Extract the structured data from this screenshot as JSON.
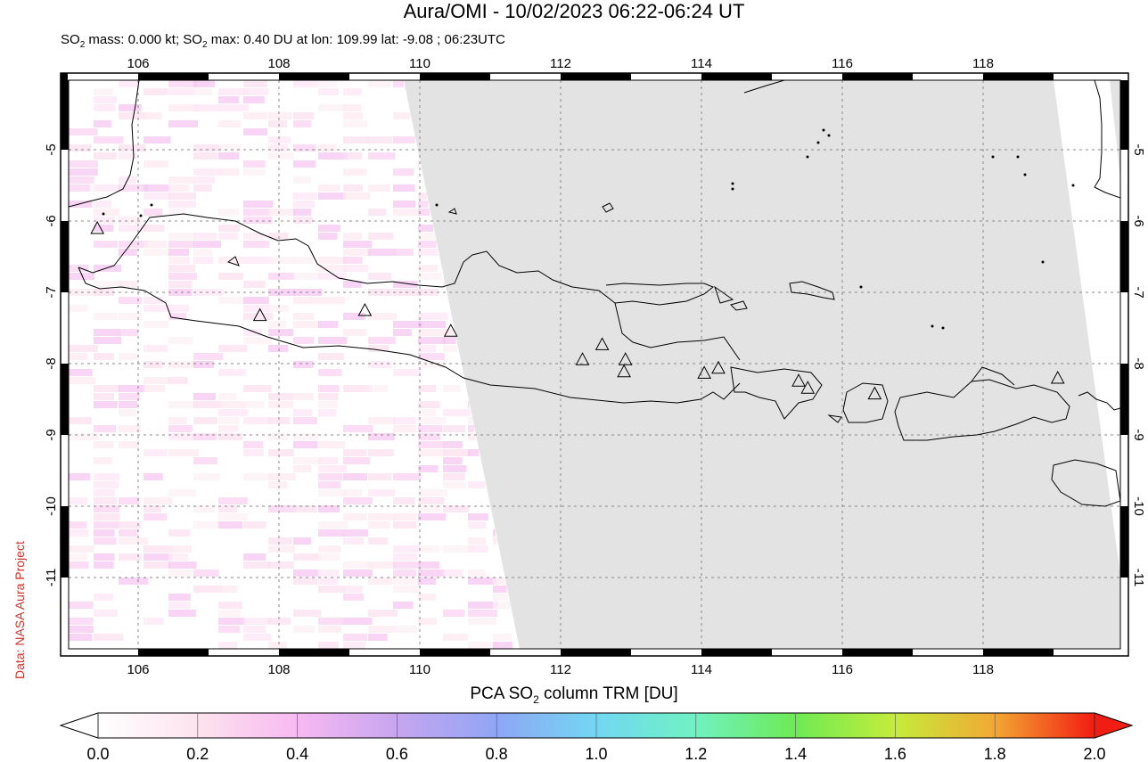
{
  "title": "Aura/OMI - 10/02/2023 06:22-06:24 UT",
  "subtitle_parts": {
    "a": "SO",
    "a_sub": "2",
    "b": " mass: 0.000 kt; SO",
    "b_sub": "2",
    "c": " max: 0.40 DU at lon: 109.99 lat: -9.08 ; 06:23UTC"
  },
  "credit": "Data: NASA Aura Project",
  "colorbar": {
    "title_pre": "PCA SO",
    "title_sub": "2",
    "title_post": " column TRM [DU]",
    "ticks": [
      "0.0",
      "0.2",
      "0.4",
      "0.6",
      "0.8",
      "1.0",
      "1.2",
      "1.4",
      "1.6",
      "1.8",
      "2.0"
    ],
    "colors": [
      "#ffffff",
      "#fde3ee",
      "#f7b9f2",
      "#c7a5ef",
      "#8fa6f5",
      "#72d7f3",
      "#6ff2c2",
      "#6eea55",
      "#c5ec3a",
      "#f2a834",
      "#f21d12"
    ]
  },
  "map": {
    "lon_ticks": [
      "106",
      "108",
      "110",
      "112",
      "114",
      "116",
      "118"
    ],
    "lat_ticks": [
      "-5",
      "-6",
      "-7",
      "-8",
      "-9",
      "-10",
      "-11"
    ],
    "lon_range": [
      104.9,
      120.0
    ],
    "lat_range": [
      -12.0,
      -4.0
    ],
    "no_data_color": "#e3e3e3",
    "so2_max_du": 0.4
  },
  "volcanoes": [
    {
      "lon": 105.42,
      "lat": -6.1
    },
    {
      "lon": 107.73,
      "lat": -7.32
    },
    {
      "lon": 109.22,
      "lat": -7.25
    },
    {
      "lon": 110.44,
      "lat": -7.54
    },
    {
      "lon": 112.31,
      "lat": -7.94
    },
    {
      "lon": 112.59,
      "lat": -7.73
    },
    {
      "lon": 112.92,
      "lat": -7.94
    },
    {
      "lon": 112.9,
      "lat": -8.11
    },
    {
      "lon": 114.04,
      "lat": -8.13
    },
    {
      "lon": 114.24,
      "lat": -8.06
    },
    {
      "lon": 115.38,
      "lat": -8.24
    },
    {
      "lon": 115.51,
      "lat": -8.34
    },
    {
      "lon": 116.46,
      "lat": -8.42
    },
    {
      "lon": 119.06,
      "lat": -8.2
    }
  ]
}
